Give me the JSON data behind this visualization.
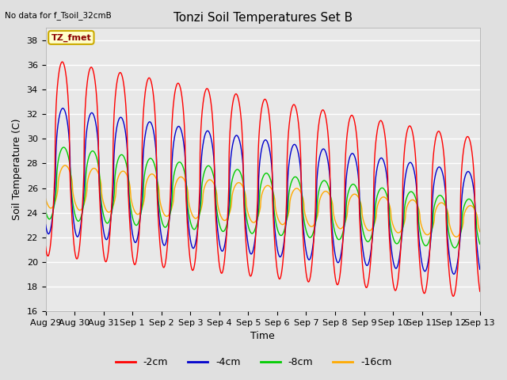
{
  "title": "Tonzi Soil Temperatures Set B",
  "no_data_text": "No data for f_Tsoil_32cmB",
  "annotation_text": "TZ_fmet",
  "xlabel": "Time",
  "ylabel": "Soil Temperature (C)",
  "ylim": [
    16,
    39
  ],
  "yticks": [
    16,
    18,
    20,
    22,
    24,
    26,
    28,
    30,
    32,
    34,
    36,
    38
  ],
  "bg_color": "#e0e0e0",
  "plot_bg_color": "#e8e8e8",
  "colors": {
    "-2cm": "#ff0000",
    "-4cm": "#0000cc",
    "-8cm": "#00cc00",
    "-16cm": "#ffaa00"
  },
  "legend_entries": [
    "-2cm",
    "-4cm",
    "-8cm",
    "-16cm"
  ],
  "num_days": 15,
  "xtick_labels": [
    "Aug 29",
    "Aug 30",
    "Aug 31",
    "Sep 1",
    "Sep 2",
    "Sep 3",
    "Sep 4",
    "Sep 5",
    "Sep 6",
    "Sep 7",
    "Sep 8",
    "Sep 9",
    "Sep 10",
    "Sep 11",
    "Sep 12",
    "Sep 13"
  ],
  "samples_per_day": 96,
  "title_fontsize": 11,
  "label_fontsize": 9,
  "tick_fontsize": 8
}
